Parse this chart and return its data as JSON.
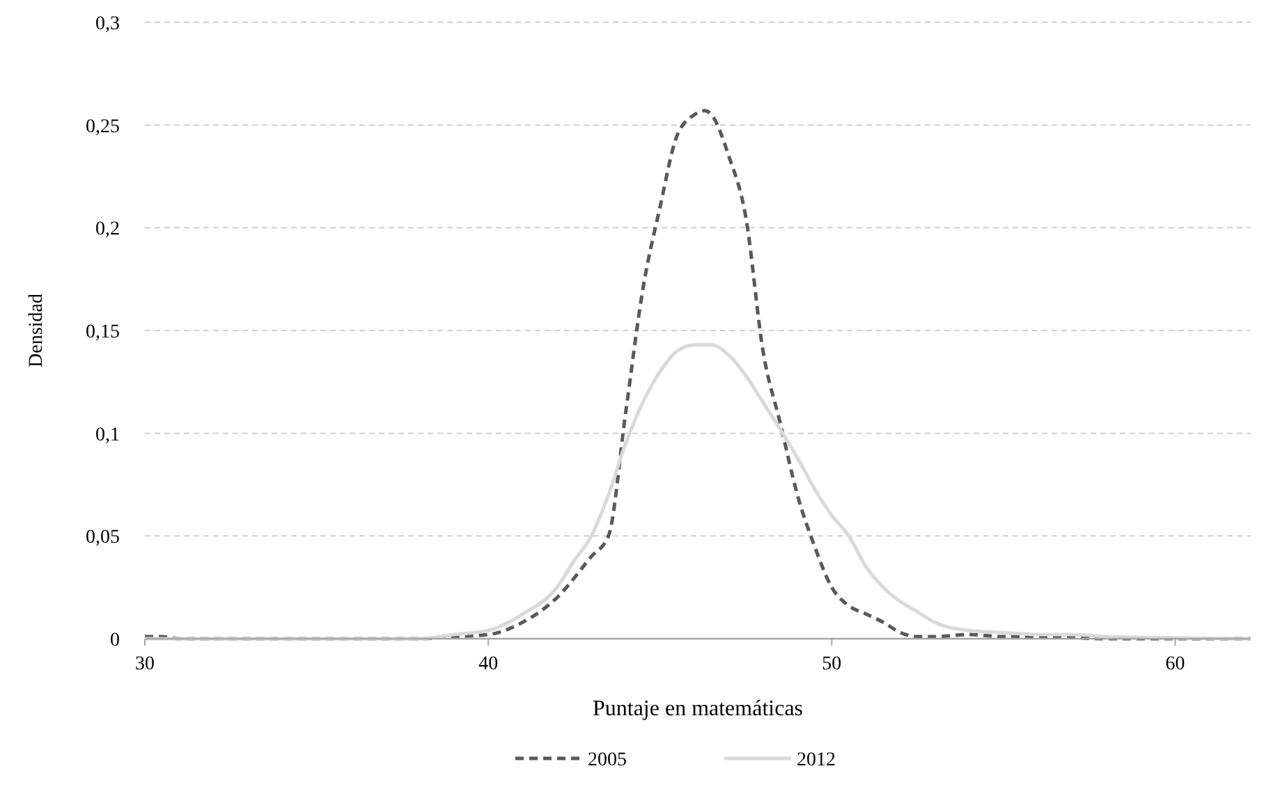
{
  "chart_data": {
    "type": "line",
    "xlabel": "Puntaje en matemáticas",
    "ylabel": "Densidad",
    "xlim": [
      30,
      62.2
    ],
    "xticks": [
      30,
      40,
      50,
      60
    ],
    "ylim": [
      0,
      0.3
    ],
    "yticks": [
      0,
      {
        "value": 0.05,
        "label": "0,05"
      },
      {
        "value": 0.1,
        "label": "0,1"
      },
      {
        "value": 0.15,
        "label": "0,15"
      },
      {
        "value": 0.2,
        "label": "0,2"
      },
      {
        "value": 0.25,
        "label": "0,25"
      },
      {
        "value": 0.3,
        "label": "0,3"
      }
    ],
    "grid": "y",
    "legend": "bottom",
    "series": [
      {
        "name": "2005",
        "color": "#595959",
        "line_style": "dashed",
        "x": [
          30,
          30.5,
          31,
          38,
          39,
          40,
          41,
          42,
          43,
          43.5,
          44,
          44.5,
          45,
          45.5,
          46,
          46.3,
          46.5,
          47,
          47.5,
          48,
          48.5,
          49,
          49.5,
          50,
          50.5,
          51,
          51.5,
          52,
          52.5,
          53,
          54,
          55,
          56,
          58,
          62.2
        ],
        "values": [
          0.001,
          0.001,
          0,
          0,
          0.001,
          0.002,
          0.008,
          0.02,
          0.04,
          0.05,
          0.11,
          0.17,
          0.21,
          0.245,
          0.255,
          0.257,
          0.255,
          0.235,
          0.205,
          0.14,
          0.105,
          0.07,
          0.045,
          0.025,
          0.016,
          0.012,
          0.008,
          0.003,
          0.001,
          0.001,
          0.002,
          0.001,
          0.001,
          0,
          0
        ]
      },
      {
        "name": "2012",
        "color": "#d9d9d9",
        "line_style": "solid",
        "x": [
          30,
          38,
          39,
          40,
          41,
          42,
          42.5,
          43,
          43.5,
          44,
          44.5,
          45,
          45.5,
          46,
          46.5,
          47,
          47.5,
          48,
          48.5,
          49,
          49.5,
          50,
          50.5,
          51,
          51.5,
          52,
          52.5,
          53,
          54,
          55,
          56,
          57,
          58,
          62.2
        ],
        "values": [
          0,
          0,
          0.002,
          0.004,
          0.012,
          0.025,
          0.038,
          0.05,
          0.07,
          0.095,
          0.115,
          0.13,
          0.14,
          0.143,
          0.143,
          0.138,
          0.128,
          0.115,
          0.102,
          0.088,
          0.073,
          0.06,
          0.05,
          0.035,
          0.025,
          0.018,
          0.013,
          0.008,
          0.004,
          0.003,
          0.002,
          0.002,
          0.001,
          0
        ]
      }
    ]
  }
}
